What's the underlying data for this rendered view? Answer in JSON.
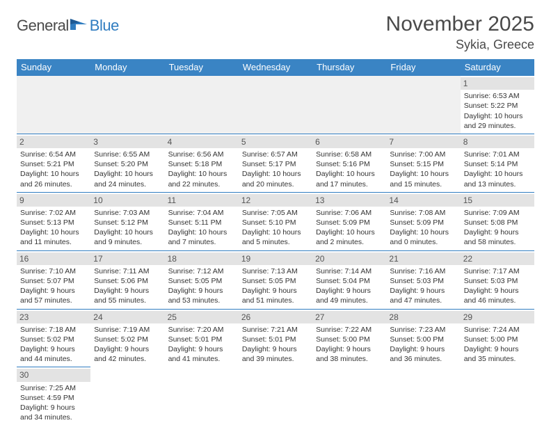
{
  "brand": {
    "part1": "General",
    "part2": "Blue"
  },
  "title": "November 2025",
  "location": "Sykia, Greece",
  "colors": {
    "header_bg": "#3a84c4",
    "border": "#2f7cc0",
    "dayband": "#e3e3e3",
    "empty_bg": "#f0f0f0",
    "text": "#333333",
    "title_text": "#4a4a4a"
  },
  "weekdays": [
    "Sunday",
    "Monday",
    "Tuesday",
    "Wednesday",
    "Thursday",
    "Friday",
    "Saturday"
  ],
  "weeks": [
    [
      null,
      null,
      null,
      null,
      null,
      null,
      {
        "n": "1",
        "sunrise": "6:53 AM",
        "sunset": "5:22 PM",
        "dl": "10 hours and 29 minutes."
      }
    ],
    [
      {
        "n": "2",
        "sunrise": "6:54 AM",
        "sunset": "5:21 PM",
        "dl": "10 hours and 26 minutes."
      },
      {
        "n": "3",
        "sunrise": "6:55 AM",
        "sunset": "5:20 PM",
        "dl": "10 hours and 24 minutes."
      },
      {
        "n": "4",
        "sunrise": "6:56 AM",
        "sunset": "5:18 PM",
        "dl": "10 hours and 22 minutes."
      },
      {
        "n": "5",
        "sunrise": "6:57 AM",
        "sunset": "5:17 PM",
        "dl": "10 hours and 20 minutes."
      },
      {
        "n": "6",
        "sunrise": "6:58 AM",
        "sunset": "5:16 PM",
        "dl": "10 hours and 17 minutes."
      },
      {
        "n": "7",
        "sunrise": "7:00 AM",
        "sunset": "5:15 PM",
        "dl": "10 hours and 15 minutes."
      },
      {
        "n": "8",
        "sunrise": "7:01 AM",
        "sunset": "5:14 PM",
        "dl": "10 hours and 13 minutes."
      }
    ],
    [
      {
        "n": "9",
        "sunrise": "7:02 AM",
        "sunset": "5:13 PM",
        "dl": "10 hours and 11 minutes."
      },
      {
        "n": "10",
        "sunrise": "7:03 AM",
        "sunset": "5:12 PM",
        "dl": "10 hours and 9 minutes."
      },
      {
        "n": "11",
        "sunrise": "7:04 AM",
        "sunset": "5:11 PM",
        "dl": "10 hours and 7 minutes."
      },
      {
        "n": "12",
        "sunrise": "7:05 AM",
        "sunset": "5:10 PM",
        "dl": "10 hours and 5 minutes."
      },
      {
        "n": "13",
        "sunrise": "7:06 AM",
        "sunset": "5:09 PM",
        "dl": "10 hours and 2 minutes."
      },
      {
        "n": "14",
        "sunrise": "7:08 AM",
        "sunset": "5:09 PM",
        "dl": "10 hours and 0 minutes."
      },
      {
        "n": "15",
        "sunrise": "7:09 AM",
        "sunset": "5:08 PM",
        "dl": "9 hours and 58 minutes."
      }
    ],
    [
      {
        "n": "16",
        "sunrise": "7:10 AM",
        "sunset": "5:07 PM",
        "dl": "9 hours and 57 minutes."
      },
      {
        "n": "17",
        "sunrise": "7:11 AM",
        "sunset": "5:06 PM",
        "dl": "9 hours and 55 minutes."
      },
      {
        "n": "18",
        "sunrise": "7:12 AM",
        "sunset": "5:05 PM",
        "dl": "9 hours and 53 minutes."
      },
      {
        "n": "19",
        "sunrise": "7:13 AM",
        "sunset": "5:05 PM",
        "dl": "9 hours and 51 minutes."
      },
      {
        "n": "20",
        "sunrise": "7:14 AM",
        "sunset": "5:04 PM",
        "dl": "9 hours and 49 minutes."
      },
      {
        "n": "21",
        "sunrise": "7:16 AM",
        "sunset": "5:03 PM",
        "dl": "9 hours and 47 minutes."
      },
      {
        "n": "22",
        "sunrise": "7:17 AM",
        "sunset": "5:03 PM",
        "dl": "9 hours and 46 minutes."
      }
    ],
    [
      {
        "n": "23",
        "sunrise": "7:18 AM",
        "sunset": "5:02 PM",
        "dl": "9 hours and 44 minutes."
      },
      {
        "n": "24",
        "sunrise": "7:19 AM",
        "sunset": "5:02 PM",
        "dl": "9 hours and 42 minutes."
      },
      {
        "n": "25",
        "sunrise": "7:20 AM",
        "sunset": "5:01 PM",
        "dl": "9 hours and 41 minutes."
      },
      {
        "n": "26",
        "sunrise": "7:21 AM",
        "sunset": "5:01 PM",
        "dl": "9 hours and 39 minutes."
      },
      {
        "n": "27",
        "sunrise": "7:22 AM",
        "sunset": "5:00 PM",
        "dl": "9 hours and 38 minutes."
      },
      {
        "n": "28",
        "sunrise": "7:23 AM",
        "sunset": "5:00 PM",
        "dl": "9 hours and 36 minutes."
      },
      {
        "n": "29",
        "sunrise": "7:24 AM",
        "sunset": "5:00 PM",
        "dl": "9 hours and 35 minutes."
      }
    ],
    [
      {
        "n": "30",
        "sunrise": "7:25 AM",
        "sunset": "4:59 PM",
        "dl": "9 hours and 34 minutes."
      },
      null,
      null,
      null,
      null,
      null,
      null
    ]
  ],
  "labels": {
    "sunrise": "Sunrise:",
    "sunset": "Sunset:",
    "daylight": "Daylight:"
  }
}
